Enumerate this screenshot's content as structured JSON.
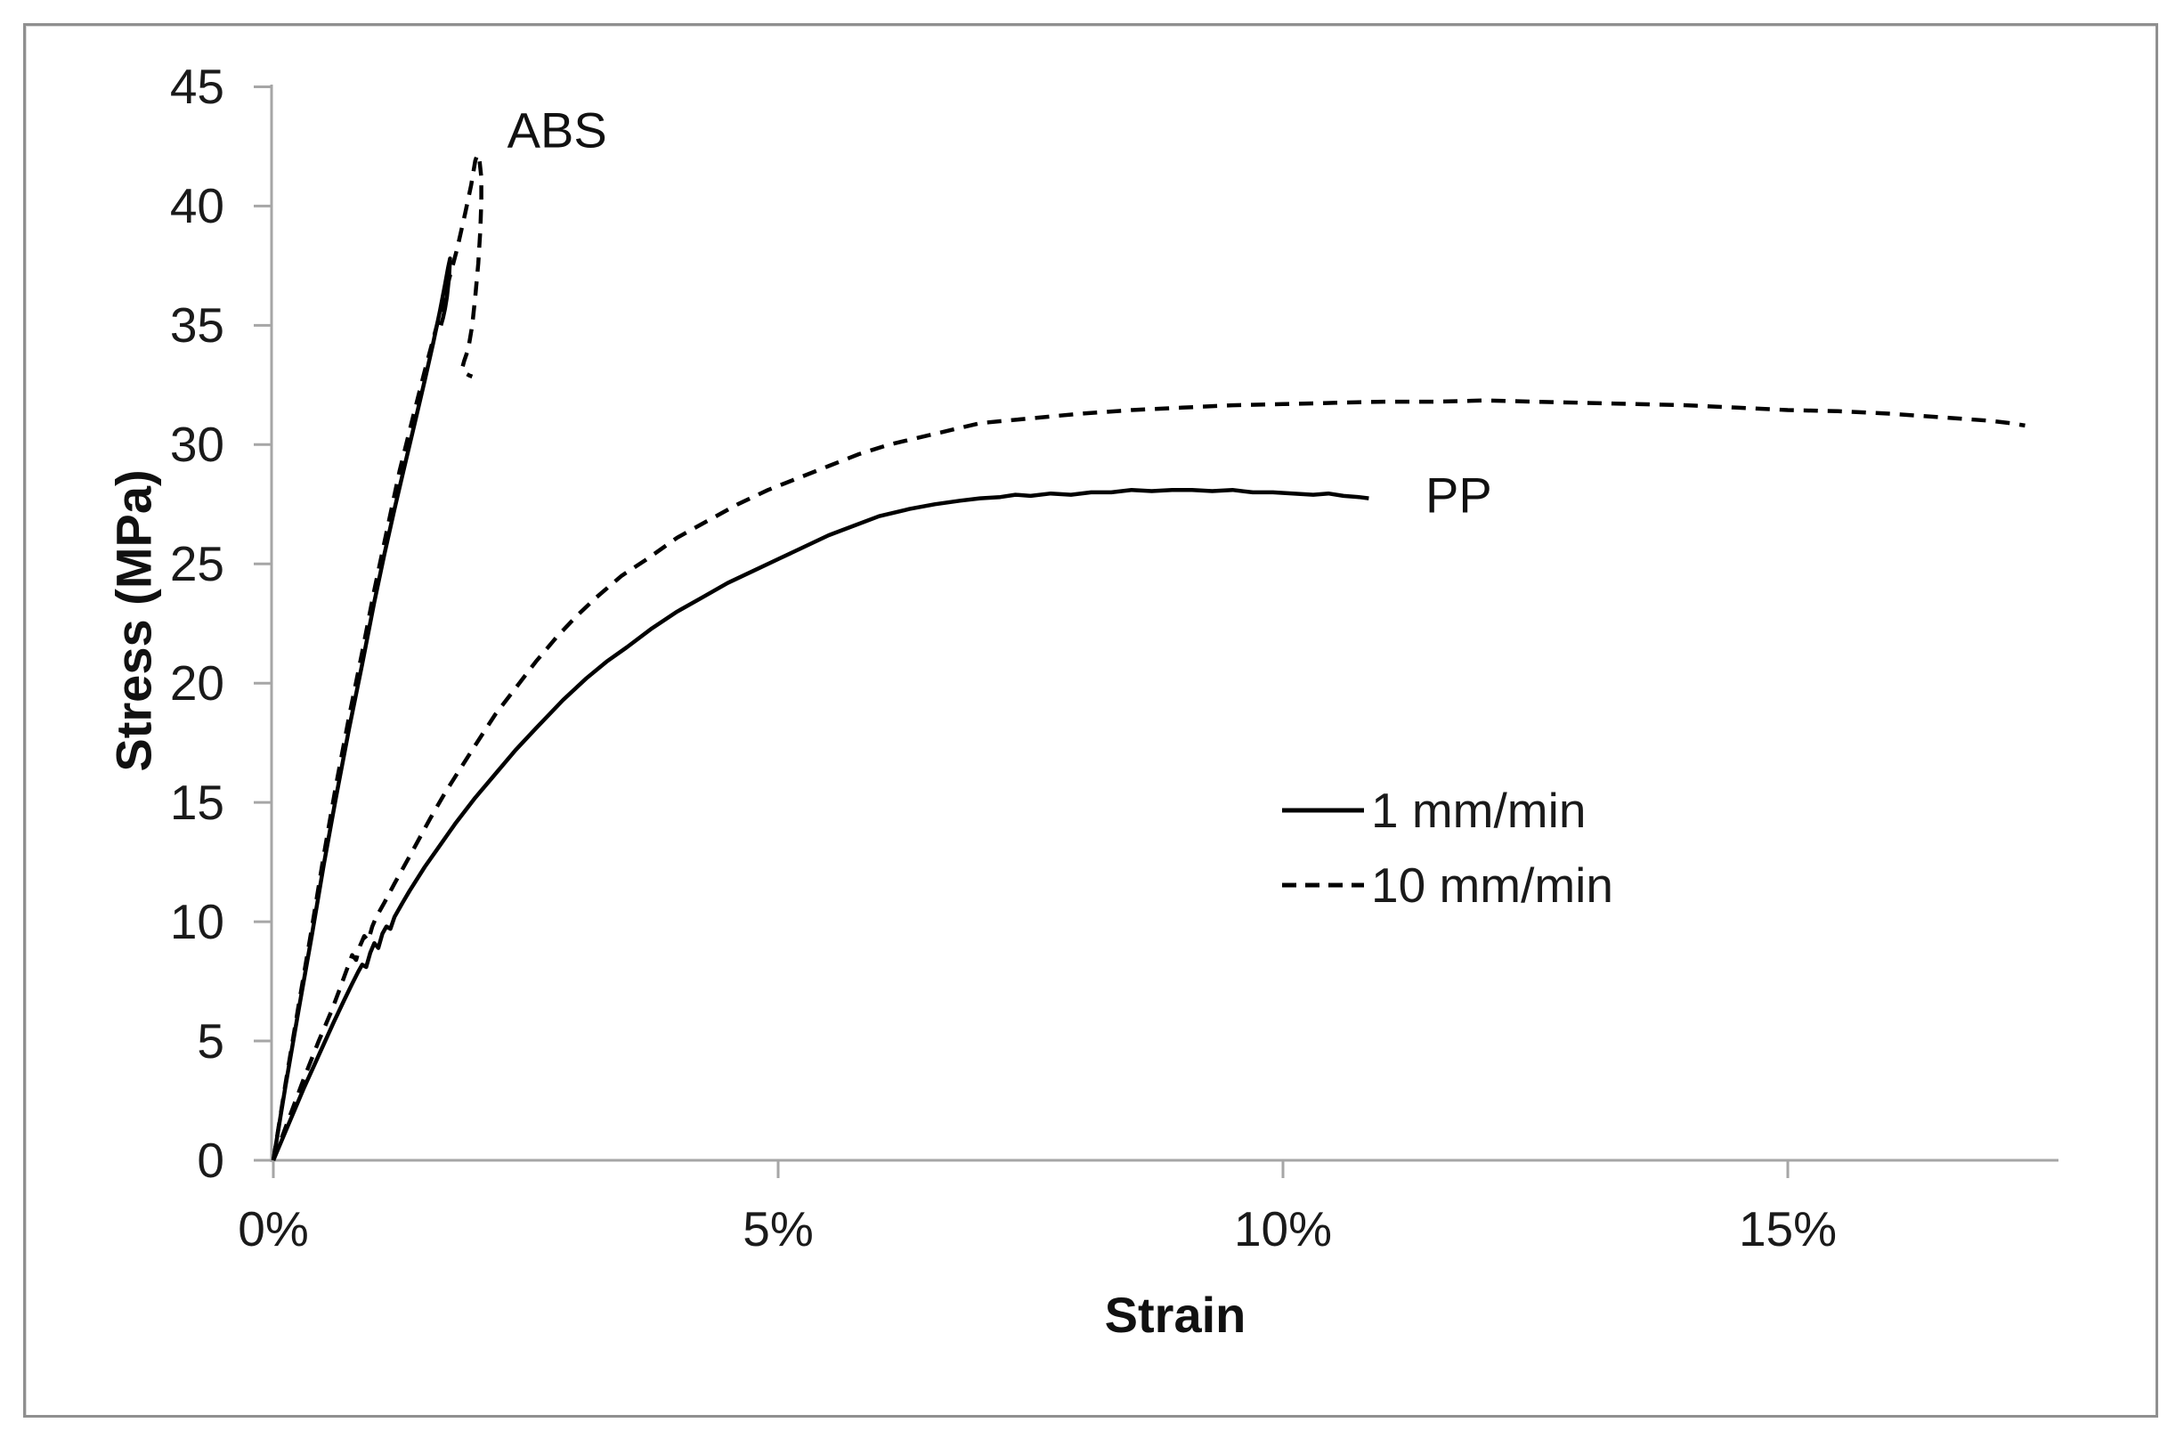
{
  "colors": {
    "curve": "#000000",
    "axis": "#a6a6a6",
    "frame": "#8f8f8f",
    "text": "#1a1a1a"
  },
  "chart_data": {
    "type": "line",
    "title": "",
    "xlabel": "Strain",
    "ylabel": "Stress (MPa)",
    "x_tick_labels": [
      "0%",
      "5%",
      "10%",
      "15%"
    ],
    "x_tick_values": [
      0,
      5,
      10,
      15
    ],
    "y_tick_values": [
      0,
      5,
      10,
      15,
      20,
      25,
      30,
      35,
      40,
      45
    ],
    "xlim_percent": [
      0,
      17.7
    ],
    "ylim": [
      0,
      45
    ],
    "grid": false,
    "legend_position": "center-right",
    "legend": [
      {
        "label": "1 mm/min",
        "style": "solid"
      },
      {
        "label": "10 mm/min",
        "style": "dashed"
      }
    ],
    "annotations": [
      {
        "text": "ABS",
        "x_percent": 2.81,
        "y_mpa": 43.2
      },
      {
        "text": "PP",
        "x_percent": 11.74,
        "y_mpa": 27.9
      }
    ],
    "series": [
      {
        "name": "ABS 1 mm/min",
        "material": "ABS",
        "rate": "1 mm/min",
        "style": "solid",
        "points": [
          [
            0,
            0
          ],
          [
            0.12,
            3.1
          ],
          [
            0.25,
            6.3
          ],
          [
            0.38,
            9.4
          ],
          [
            0.5,
            12.4
          ],
          [
            0.62,
            15.2
          ],
          [
            0.75,
            18.1
          ],
          [
            0.88,
            20.8
          ],
          [
            1.0,
            23.4
          ],
          [
            1.1,
            25.4
          ],
          [
            1.2,
            27.3
          ],
          [
            1.3,
            29.1
          ],
          [
            1.4,
            30.9
          ],
          [
            1.5,
            32.7
          ],
          [
            1.58,
            34.2
          ],
          [
            1.65,
            35.6
          ],
          [
            1.7,
            36.7
          ],
          [
            1.73,
            37.4
          ],
          [
            1.75,
            37.8
          ],
          [
            1.74,
            37.0
          ],
          [
            1.72,
            36.2
          ],
          [
            1.7,
            35.7
          ],
          [
            1.68,
            35.3
          ],
          [
            1.66,
            35.0
          ]
        ]
      },
      {
        "name": "ABS 10 mm/min",
        "material": "ABS",
        "rate": "10 mm/min",
        "style": "dashed",
        "points": [
          [
            0,
            0
          ],
          [
            0.12,
            3.2
          ],
          [
            0.25,
            6.5
          ],
          [
            0.38,
            9.7
          ],
          [
            0.5,
            12.8
          ],
          [
            0.62,
            15.7
          ],
          [
            0.75,
            18.6
          ],
          [
            0.88,
            21.3
          ],
          [
            1.0,
            23.9
          ],
          [
            1.12,
            26.3
          ],
          [
            1.25,
            28.9
          ],
          [
            1.38,
            31.1
          ],
          [
            1.5,
            33.1
          ],
          [
            1.62,
            35.0
          ],
          [
            1.72,
            36.6
          ],
          [
            1.82,
            38.2
          ],
          [
            1.9,
            39.7
          ],
          [
            1.96,
            40.9
          ],
          [
            2.0,
            41.9
          ],
          [
            2.02,
            42.15
          ],
          [
            2.04,
            42.0
          ],
          [
            2.06,
            41.2
          ],
          [
            2.06,
            40.2
          ],
          [
            2.05,
            39.0
          ],
          [
            2.03,
            37.6
          ],
          [
            2.0,
            36.2
          ],
          [
            1.97,
            35.0
          ],
          [
            1.93,
            34.0
          ],
          [
            1.89,
            33.5
          ],
          [
            1.87,
            33.2
          ],
          [
            1.9,
            33.0
          ],
          [
            1.94,
            32.9
          ],
          [
            1.97,
            32.85
          ]
        ]
      },
      {
        "name": "PP 1 mm/min",
        "material": "PP",
        "rate": "1 mm/min",
        "style": "solid",
        "points": [
          [
            0,
            0
          ],
          [
            0.15,
            1.5
          ],
          [
            0.3,
            3.0
          ],
          [
            0.45,
            4.4
          ],
          [
            0.6,
            5.8
          ],
          [
            0.7,
            6.7
          ],
          [
            0.78,
            7.4
          ],
          [
            0.84,
            7.9
          ],
          [
            0.88,
            8.2
          ],
          [
            0.92,
            8.1
          ],
          [
            0.96,
            8.7
          ],
          [
            1.0,
            9.1
          ],
          [
            1.04,
            8.9
          ],
          [
            1.08,
            9.5
          ],
          [
            1.12,
            9.8
          ],
          [
            1.16,
            9.7
          ],
          [
            1.2,
            10.2
          ],
          [
            1.28,
            10.8
          ],
          [
            1.35,
            11.3
          ],
          [
            1.5,
            12.3
          ],
          [
            1.65,
            13.2
          ],
          [
            1.8,
            14.1
          ],
          [
            2.0,
            15.2
          ],
          [
            2.2,
            16.2
          ],
          [
            2.4,
            17.2
          ],
          [
            2.6,
            18.1
          ],
          [
            2.87,
            19.3
          ],
          [
            3.1,
            20.2
          ],
          [
            3.3,
            20.9
          ],
          [
            3.5,
            21.5
          ],
          [
            3.75,
            22.3
          ],
          [
            4.0,
            23.0
          ],
          [
            4.25,
            23.6
          ],
          [
            4.5,
            24.2
          ],
          [
            4.75,
            24.7
          ],
          [
            5.0,
            25.2
          ],
          [
            5.25,
            25.7
          ],
          [
            5.5,
            26.2
          ],
          [
            5.75,
            26.6
          ],
          [
            6.0,
            27.0
          ],
          [
            6.3,
            27.3
          ],
          [
            6.55,
            27.5
          ],
          [
            6.8,
            27.65
          ],
          [
            7.0,
            27.75
          ],
          [
            7.2,
            27.8
          ],
          [
            7.35,
            27.9
          ],
          [
            7.5,
            27.85
          ],
          [
            7.7,
            27.95
          ],
          [
            7.9,
            27.9
          ],
          [
            8.1,
            28.0
          ],
          [
            8.3,
            28.0
          ],
          [
            8.5,
            28.1
          ],
          [
            8.7,
            28.05
          ],
          [
            8.9,
            28.1
          ],
          [
            9.1,
            28.1
          ],
          [
            9.3,
            28.05
          ],
          [
            9.5,
            28.1
          ],
          [
            9.7,
            28.0
          ],
          [
            9.9,
            28.0
          ],
          [
            10.1,
            27.95
          ],
          [
            10.3,
            27.9
          ],
          [
            10.45,
            27.95
          ],
          [
            10.6,
            27.85
          ],
          [
            10.75,
            27.8
          ],
          [
            10.85,
            27.75
          ]
        ]
      },
      {
        "name": "PP 10 mm/min",
        "material": "PP",
        "rate": "10 mm/min",
        "style": "dashed",
        "points": [
          [
            0,
            0
          ],
          [
            0.15,
            1.7
          ],
          [
            0.3,
            3.4
          ],
          [
            0.45,
            5.0
          ],
          [
            0.58,
            6.3
          ],
          [
            0.66,
            7.2
          ],
          [
            0.72,
            7.9
          ],
          [
            0.78,
            8.6
          ],
          [
            0.82,
            8.4
          ],
          [
            0.86,
            9.0
          ],
          [
            0.9,
            9.4
          ],
          [
            0.94,
            9.2
          ],
          [
            0.98,
            9.8
          ],
          [
            1.02,
            10.2
          ],
          [
            1.1,
            10.8
          ],
          [
            1.2,
            11.6
          ],
          [
            1.37,
            12.9
          ],
          [
            1.55,
            14.3
          ],
          [
            1.7,
            15.4
          ],
          [
            1.85,
            16.4
          ],
          [
            2.0,
            17.4
          ],
          [
            2.2,
            18.7
          ],
          [
            2.4,
            19.8
          ],
          [
            2.6,
            20.9
          ],
          [
            2.8,
            21.9
          ],
          [
            3.0,
            22.8
          ],
          [
            3.2,
            23.6
          ],
          [
            3.45,
            24.5
          ],
          [
            3.7,
            25.2
          ],
          [
            4.0,
            26.1
          ],
          [
            4.3,
            26.8
          ],
          [
            4.6,
            27.5
          ],
          [
            4.9,
            28.1
          ],
          [
            5.2,
            28.6
          ],
          [
            5.5,
            29.1
          ],
          [
            5.8,
            29.6
          ],
          [
            6.1,
            30.0
          ],
          [
            6.5,
            30.4
          ],
          [
            7.0,
            30.9
          ],
          [
            7.5,
            31.1
          ],
          [
            8.0,
            31.3
          ],
          [
            8.5,
            31.45
          ],
          [
            9.0,
            31.55
          ],
          [
            9.5,
            31.65
          ],
          [
            10.0,
            31.7
          ],
          [
            10.5,
            31.75
          ],
          [
            11.0,
            31.8
          ],
          [
            11.5,
            31.8
          ],
          [
            12.0,
            31.85
          ],
          [
            12.5,
            31.8
          ],
          [
            13.0,
            31.75
          ],
          [
            13.5,
            31.7
          ],
          [
            14.0,
            31.65
          ],
          [
            14.5,
            31.55
          ],
          [
            15.0,
            31.45
          ],
          [
            15.5,
            31.4
          ],
          [
            16.0,
            31.3
          ],
          [
            16.5,
            31.15
          ],
          [
            17.0,
            31.0
          ],
          [
            17.2,
            30.9
          ],
          [
            17.35,
            30.8
          ]
        ]
      }
    ]
  }
}
